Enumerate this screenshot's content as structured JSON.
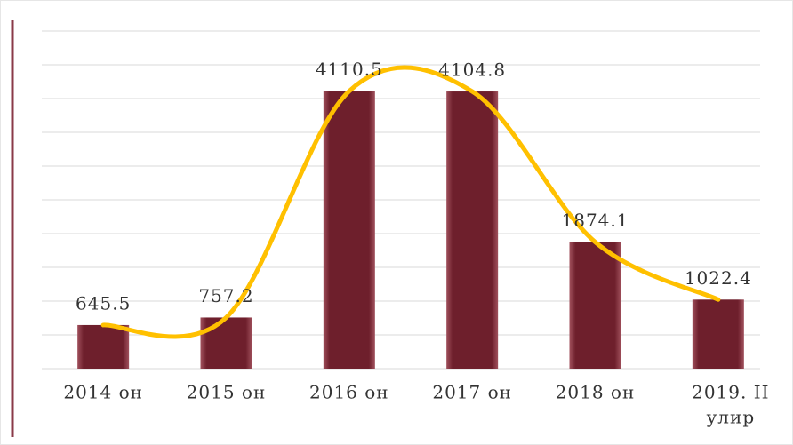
{
  "chart_data": {
    "type": "bar",
    "categories": [
      "2014 он",
      "2015 он",
      "2016 он",
      "2017 он",
      "2018 он",
      [
        "2019. II",
        "улир"
      ]
    ],
    "values": [
      645.5,
      757.2,
      4110.5,
      4104.8,
      1874.1,
      1022.4
    ],
    "color": "#6e1f2c",
    "line_color": "#ffc000",
    "ylim": [
      0,
      5000
    ],
    "yticks": [
      0,
      500,
      1000,
      1500,
      2000,
      2500,
      3000,
      3500,
      4000,
      4500,
      5000
    ],
    "grid": true
  }
}
